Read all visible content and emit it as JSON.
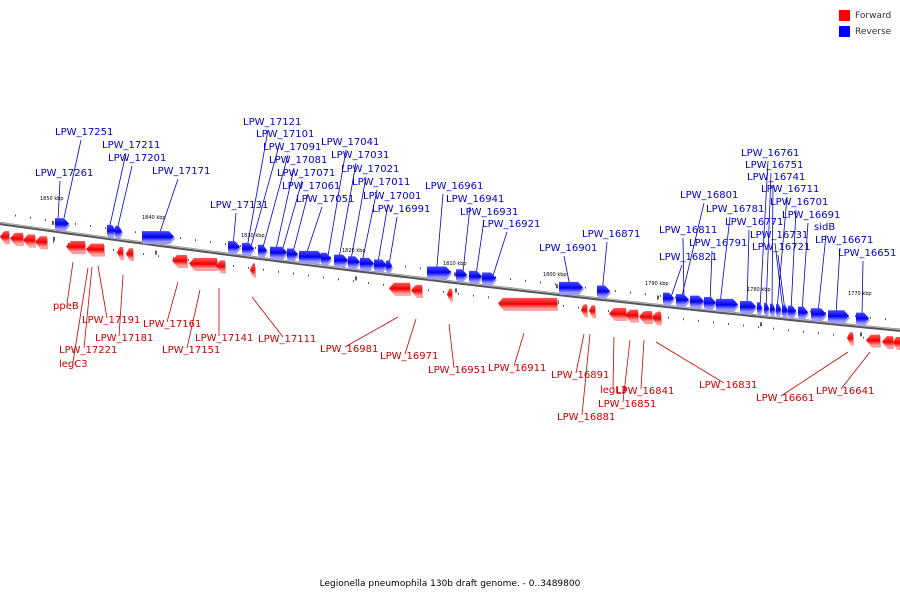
{
  "title": "Legionella pneumophila 130b draft genome. - 0..3489800",
  "legend": {
    "items": [
      {
        "label": "Forward",
        "color": "#ff0000"
      },
      {
        "label": "Reverse",
        "color": "#0000ff"
      }
    ]
  },
  "colors": {
    "forward": "#ff0000",
    "reverse": "#0000ff",
    "backbone": "#777777",
    "forward_label": "#cc0000",
    "reverse_label": "#0000cc"
  },
  "scale_ticks": [
    "1850 kbp",
    "1840 kbp",
    "1830 kbp",
    "1820 kbp",
    "1810 kbp",
    "1800 kbp",
    "1790 kbp",
    "1780 kbp",
    "1770 kbp"
  ],
  "reverse_genes": [
    "LPW_17251",
    "LPW_17261",
    "LPW_17211",
    "LPW_17201",
    "LPW_17171",
    "LPW_17121",
    "LPW_17101",
    "LPW_17091",
    "LPW_17081",
    "LPW_17071",
    "LPW_17061",
    "LPW_17131",
    "LPW_17051",
    "LPW_17041",
    "LPW_17031",
    "LPW_17021",
    "LPW_17011",
    "LPW_17001",
    "LPW_16991",
    "LPW_16961",
    "LPW_16941",
    "LPW_16931",
    "LPW_16921",
    "LPW_16901",
    "LPW_16871",
    "LPW_16801",
    "LPW_16811",
    "LPW_16821",
    "LPW_16791",
    "LPW_16781",
    "LPW_16771",
    "LPW_16761",
    "LPW_16751",
    "LPW_16741",
    "LPW_16711",
    "LPW_16701",
    "LPW_16691",
    "LPW_16731",
    "LPW_16721",
    "sidB",
    "LPW_16671",
    "LPW_16651"
  ],
  "forward_genes": [
    "ppeB",
    "LPW_17191",
    "LPW_17181",
    "LPW_17221",
    "legC3",
    "LPW_17161",
    "LPW_17141",
    "LPW_17151",
    "LPW_17111",
    "LPW_16981",
    "LPW_16971",
    "LPW_16951",
    "LPW_16911",
    "LPW_16891",
    "LPW_16881",
    "legL3",
    "LPW_16851",
    "LPW_16841",
    "LPW_16831",
    "LPW_16661",
    "LPW_16641"
  ]
}
